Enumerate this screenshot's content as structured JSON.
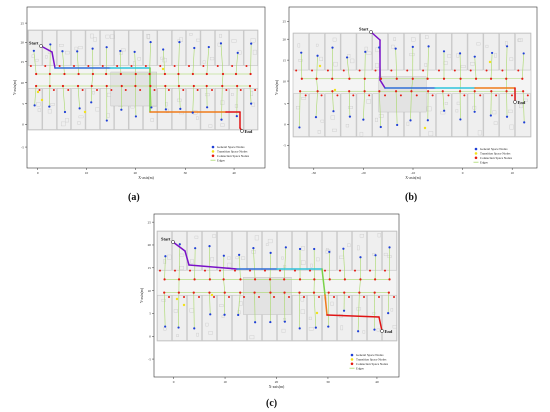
{
  "figure": {
    "panels": [
      {
        "caption": "(a)",
        "xlabel": "X-axis(m)",
        "ylabel": "Y-axis(m)",
        "xticks": [
          "0",
          "10",
          "20",
          "30",
          "40"
        ],
        "yticks": [
          "25",
          "20",
          "15",
          "10",
          "5",
          "0",
          "-5"
        ],
        "start_label": "Start",
        "end_label": "End",
        "legend": [
          "General Space Nodes",
          "Transition Space Nodes",
          "Connection Space Nodes",
          "Edges"
        ]
      },
      {
        "caption": "(b)",
        "xlabel": "X-axis(m)",
        "ylabel": "Y-axis(m)",
        "xticks": [
          "-30",
          "-20",
          "-10",
          "0",
          "10"
        ],
        "yticks": [
          "25",
          "20",
          "15",
          "10",
          "5",
          "0",
          "-5"
        ],
        "start_label": "Start",
        "end_label": "End",
        "legend": [
          "General Space Nodes",
          "Transition Space Nodes",
          "Connection Space Nodes",
          "Edges"
        ]
      },
      {
        "caption": "(c)",
        "xlabel": "X-axis(m)",
        "ylabel": "Y-axis(m)",
        "xticks": [
          "0",
          "10",
          "20",
          "30",
          "40"
        ],
        "yticks": [
          "25",
          "20",
          "15",
          "10",
          "5",
          "0",
          "-5"
        ],
        "start_label": "Start",
        "end_label": "End",
        "legend": [
          "General Space Nodes",
          "Transition Space Nodes",
          "Connection Space Nodes",
          "Edges"
        ]
      }
    ],
    "colors": {
      "general_node": "#1f3fd6",
      "transition_node": "#f2e21a",
      "connection_node": "#e41b12",
      "edge": "#a8d86a",
      "path_purple": "#7a12c8",
      "path_blue": "#2f6fd8",
      "path_cyan": "#2ec4dc",
      "path_green": "#7bd24a",
      "path_orange": "#ef7b1a",
      "path_red": "#e01414",
      "wall": "#b9b9b9"
    }
  }
}
